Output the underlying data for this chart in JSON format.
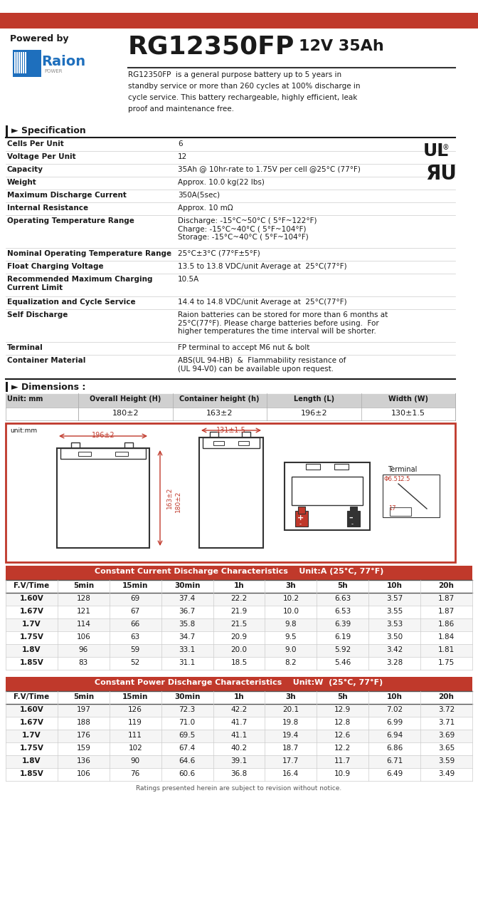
{
  "title_model": "RG12350FP",
  "title_spec": "12V 35Ah",
  "powered_by": "Powered by",
  "description": "RG12350FP  is a general purpose battery up to 5 years in\nstandby service or more than 260 cycles at 100% discharge in\ncycle service. This battery rechargeable, highly efficient, leak\nproof and maintenance free.",
  "spec_title": "Specification",
  "spec_rows": [
    [
      "Cells Per Unit",
      "6"
    ],
    [
      "Voltage Per Unit",
      "12"
    ],
    [
      "Capacity",
      "35Ah @ 10hr-rate to 1.75V per cell @25°C (77°F)"
    ],
    [
      "Weight",
      "Approx. 10.0 kg(22 lbs)"
    ],
    [
      "Maximum Discharge Current",
      "350A(5sec)"
    ],
    [
      "Internal Resistance",
      "Approx. 10 mΩ"
    ],
    [
      "Operating Temperature Range",
      "Discharge: -15°C~50°C ( 5°F~122°F)\nCharge: -15°C~40°C ( 5°F~104°F)\nStorage: -15°C~40°C ( 5°F~104°F)"
    ],
    [
      "Nominal Operating Temperature Range",
      "25°C±3°C (77°F±5°F)"
    ],
    [
      "Float Charging Voltage",
      "13.5 to 13.8 VDC/unit Average at  25°C(77°F)"
    ],
    [
      "Recommended Maximum Charging\nCurrent Limit",
      "10.5A"
    ],
    [
      "Equalization and Cycle Service",
      "14.4 to 14.8 VDC/unit Average at  25°C(77°F)"
    ],
    [
      "Self Discharge",
      "Raion batteries can be stored for more than 6 months at\n25°C(77°F). Please charge batteries before using.  For\nhigher temperatures the time interval will be shorter."
    ],
    [
      "Terminal",
      "FP terminal to accept M6 nut & bolt"
    ],
    [
      "Container Material",
      "ABS(UL 94-HB)  &  Flammability resistance of\n(UL 94-V0) can be available upon request."
    ]
  ],
  "dim_title": "Dimensions :",
  "dim_unit": "Unit: mm",
  "dim_headers": [
    "Overall Height (H)",
    "Container height (h)",
    "Length (L)",
    "Width (W)"
  ],
  "dim_values": [
    "180±2",
    "163±2",
    "196±2",
    "130±1.5"
  ],
  "cc_table_title": "Constant Current Discharge Characteristics    Unit:A (25°C, 77°F)",
  "cc_headers": [
    "F.V/Time",
    "5min",
    "15min",
    "30min",
    "1h",
    "3h",
    "5h",
    "10h",
    "20h"
  ],
  "cc_rows": [
    [
      "1.60V",
      "128",
      "69",
      "37.4",
      "22.2",
      "10.2",
      "6.63",
      "3.57",
      "1.87"
    ],
    [
      "1.67V",
      "121",
      "67",
      "36.7",
      "21.9",
      "10.0",
      "6.53",
      "3.55",
      "1.87"
    ],
    [
      "1.7V",
      "114",
      "66",
      "35.8",
      "21.5",
      "9.8",
      "6.39",
      "3.53",
      "1.86"
    ],
    [
      "1.75V",
      "106",
      "63",
      "34.7",
      "20.9",
      "9.5",
      "6.19",
      "3.50",
      "1.84"
    ],
    [
      "1.8V",
      "96",
      "59",
      "33.1",
      "20.0",
      "9.0",
      "5.92",
      "3.42",
      "1.81"
    ],
    [
      "1.85V",
      "83",
      "52",
      "31.1",
      "18.5",
      "8.2",
      "5.46",
      "3.28",
      "1.75"
    ]
  ],
  "cp_table_title": "Constant Power Discharge Characteristics    Unit:W  (25°C, 77°F)",
  "cp_headers": [
    "F.V/Time",
    "5min",
    "15min",
    "30min",
    "1h",
    "3h",
    "5h",
    "10h",
    "20h"
  ],
  "cp_rows": [
    [
      "1.60V",
      "197",
      "126",
      "72.3",
      "42.2",
      "20.1",
      "12.9",
      "7.02",
      "3.72"
    ],
    [
      "1.67V",
      "188",
      "119",
      "71.0",
      "41.7",
      "19.8",
      "12.8",
      "6.99",
      "3.71"
    ],
    [
      "1.7V",
      "176",
      "111",
      "69.5",
      "41.1",
      "19.4",
      "12.6",
      "6.94",
      "3.69"
    ],
    [
      "1.75V",
      "159",
      "102",
      "67.4",
      "40.2",
      "18.7",
      "12.2",
      "6.86",
      "3.65"
    ],
    [
      "1.8V",
      "136",
      "90",
      "64.6",
      "39.1",
      "17.7",
      "11.7",
      "6.71",
      "3.59"
    ],
    [
      "1.85V",
      "106",
      "76",
      "60.6",
      "36.8",
      "16.4",
      "10.9",
      "6.49",
      "3.49"
    ]
  ],
  "footer": "Ratings presented herein are subject to revision without notice.",
  "red_bar_color": "#c0392b",
  "header_bg": "#c0392b",
  "table_header_bg": "#c0392b",
  "table_alt_bg": "#f2f2f2",
  "dim_header_bg": "#d0d0d0",
  "border_color": "#c0392b",
  "text_dark": "#1a1a1a",
  "text_white": "#ffffff"
}
